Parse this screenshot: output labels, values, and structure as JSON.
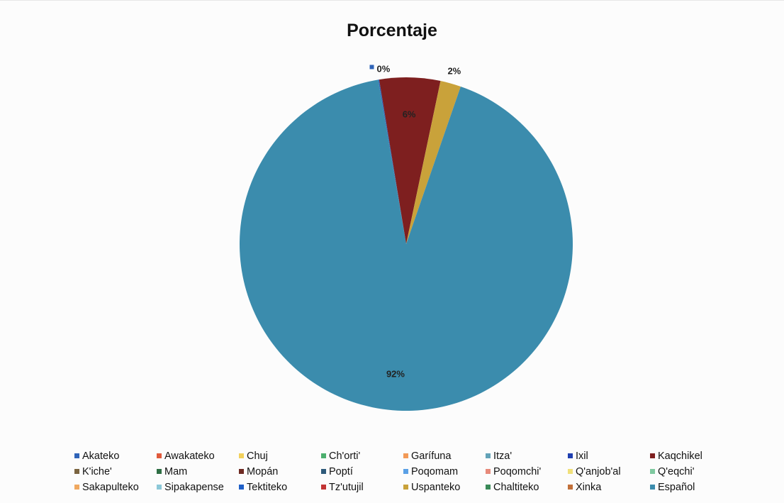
{
  "chart_data": {
    "type": "pie",
    "title": "Porcentaje",
    "legend_position": "bottom",
    "categories": [
      "Akateko",
      "Awakateko",
      "Chuj",
      "Ch'orti'",
      "Garífuna",
      "Itza'",
      "Ixil",
      "Kaqchikel",
      "K'iche'",
      "Mam",
      "Mopán",
      "Poptí",
      "Poqomam",
      "Poqomchi'",
      "Q'anjob'al",
      "Q'eqchi'",
      "Sakapulteko",
      "Sipakapense",
      "Tektiteko",
      "Tz'utujil",
      "Uspanteko",
      "Chaltiteko",
      "Xinka",
      "Español"
    ],
    "values": [
      0.1,
      0,
      0,
      0,
      0,
      0,
      0,
      5.9,
      0,
      0,
      0,
      0,
      0,
      0,
      0,
      0,
      0,
      0,
      0,
      0,
      2,
      0,
      0,
      92
    ],
    "labels": [
      "0%",
      "",
      "",
      "",
      "",
      "",
      "",
      "6%",
      "",
      "",
      "",
      "",
      "",
      "",
      "",
      "",
      "",
      "",
      "",
      "",
      "2%",
      "",
      "",
      "92%"
    ],
    "colors": [
      "#2f64b8",
      "#e05a3c",
      "#f2d15c",
      "#4caf6e",
      "#f29a57",
      "#63a3b8",
      "#1f3fb0",
      "#7e1f1f",
      "#7a6440",
      "#2e6e44",
      "#6e2a22",
      "#2f5a7a",
      "#5aa0e6",
      "#e78a7a",
      "#f0e07a",
      "#7fc9a0",
      "#f0a860",
      "#8cc8d8",
      "#1f5fc8",
      "#c23434",
      "#c9a23a",
      "#3a8a58",
      "#c2703a",
      "#3b8cad"
    ]
  }
}
